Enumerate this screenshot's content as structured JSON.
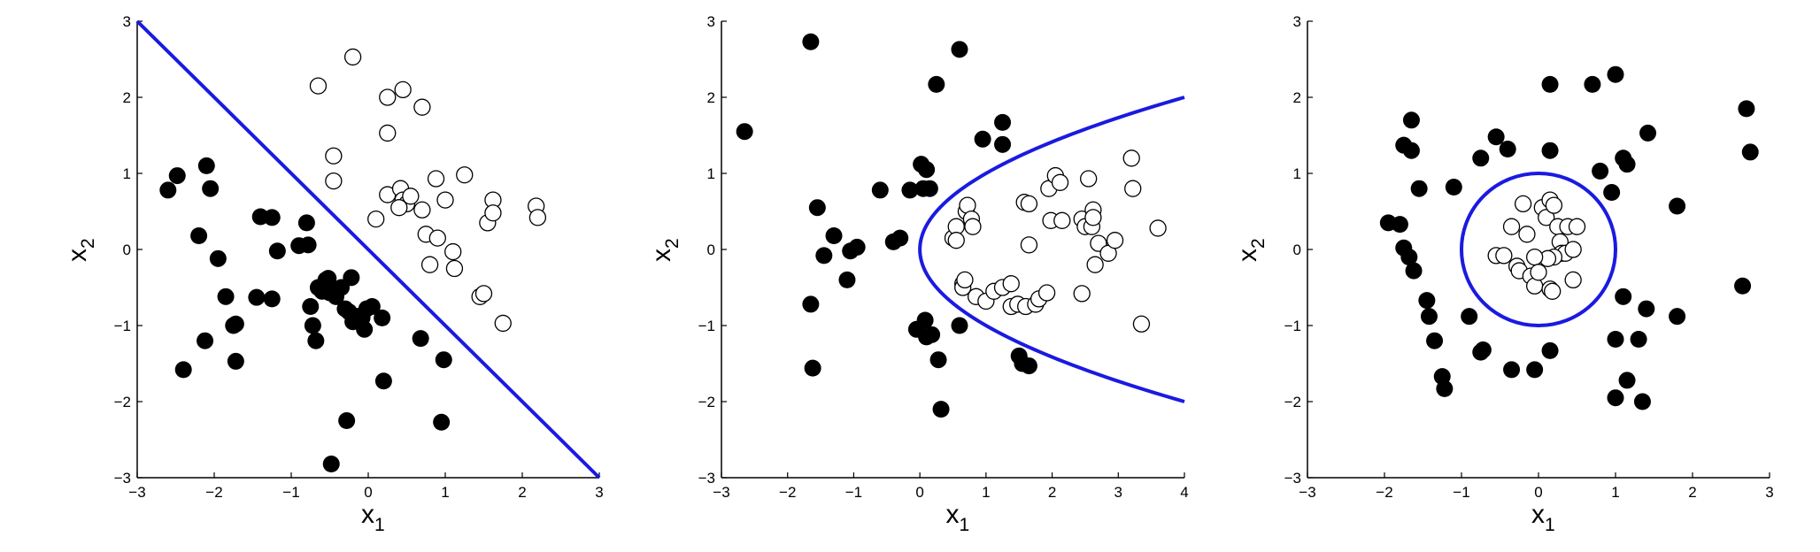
{
  "colors": {
    "boundary": "#1a1ae0",
    "class_a": "#000000",
    "class_b_fill": "#ffffff",
    "class_b_edge": "#000000",
    "axis": "#000000"
  },
  "chart_data": [
    {
      "type": "scatter",
      "xlabel": "x",
      "xlabel_sub": "1",
      "ylabel": "x",
      "ylabel_sub": "2",
      "xlim": [
        -3,
        3
      ],
      "ylim": [
        -3,
        3
      ],
      "xticks": [
        -3,
        -2,
        -1,
        0,
        1,
        2,
        3
      ],
      "yticks": [
        -3,
        -2,
        -1,
        0,
        1,
        2,
        3
      ],
      "grid": false,
      "boundary": {
        "kind": "line",
        "points": [
          [
            -3,
            3
          ],
          [
            3,
            -3
          ]
        ]
      },
      "series": [
        {
          "marker": "filled",
          "points": [
            [
              -2.6,
              0.78
            ],
            [
              -2.48,
              0.97
            ],
            [
              -2.4,
              -1.58
            ],
            [
              -2.2,
              0.18
            ],
            [
              -2.1,
              1.1
            ],
            [
              -2.05,
              0.8
            ],
            [
              -2.12,
              -1.2
            ],
            [
              -1.95,
              -0.12
            ],
            [
              -1.85,
              -0.62
            ],
            [
              -1.75,
              -1.0
            ],
            [
              -1.72,
              -0.98
            ],
            [
              -1.72,
              -1.47
            ],
            [
              -1.45,
              -0.63
            ],
            [
              -1.4,
              0.43
            ],
            [
              -1.25,
              0.42
            ],
            [
              -1.25,
              -0.65
            ],
            [
              -1.18,
              -0.02
            ],
            [
              -0.9,
              0.05
            ],
            [
              -0.8,
              0.35
            ],
            [
              -0.78,
              0.06
            ],
            [
              -0.75,
              -0.75
            ],
            [
              -0.72,
              -1.0
            ],
            [
              -0.68,
              -1.2
            ],
            [
              -0.65,
              -0.5
            ],
            [
              -0.6,
              -0.55
            ],
            [
              -0.55,
              -0.4
            ],
            [
              -0.52,
              -0.38
            ],
            [
              -0.5,
              -0.57
            ],
            [
              -0.42,
              -0.62
            ],
            [
              -0.35,
              -0.5
            ],
            [
              -0.3,
              -0.78
            ],
            [
              -0.25,
              -0.82
            ],
            [
              -0.22,
              -0.37
            ],
            [
              -0.2,
              -0.95
            ],
            [
              -0.15,
              -0.88
            ],
            [
              -0.08,
              -0.9
            ],
            [
              -0.05,
              -1.05
            ],
            [
              -0.02,
              -0.78
            ],
            [
              0.05,
              -0.75
            ],
            [
              0.18,
              -0.9
            ],
            [
              0.2,
              -1.73
            ],
            [
              -0.28,
              -2.25
            ],
            [
              -0.48,
              -2.82
            ],
            [
              0.68,
              -1.17
            ],
            [
              0.98,
              -1.45
            ],
            [
              0.95,
              -2.27
            ]
          ]
        },
        {
          "marker": "open",
          "points": [
            [
              -0.65,
              2.15
            ],
            [
              -0.2,
              2.53
            ],
            [
              -0.45,
              1.23
            ],
            [
              -0.45,
              0.9
            ],
            [
              0.25,
              2.0
            ],
            [
              0.45,
              2.1
            ],
            [
              0.7,
              1.87
            ],
            [
              0.25,
              1.53
            ],
            [
              0.25,
              0.72
            ],
            [
              0.1,
              0.4
            ],
            [
              0.42,
              0.8
            ],
            [
              0.45,
              0.65
            ],
            [
              0.5,
              0.6
            ],
            [
              0.4,
              0.55
            ],
            [
              0.55,
              0.7
            ],
            [
              0.7,
              0.52
            ],
            [
              0.8,
              -0.2
            ],
            [
              0.75,
              0.2
            ],
            [
              0.88,
              0.93
            ],
            [
              0.9,
              0.15
            ],
            [
              1.0,
              0.65
            ],
            [
              1.1,
              -0.03
            ],
            [
              1.12,
              -0.25
            ],
            [
              1.25,
              0.98
            ],
            [
              1.45,
              -0.62
            ],
            [
              1.5,
              -0.58
            ],
            [
              1.55,
              0.35
            ],
            [
              1.62,
              0.65
            ],
            [
              1.62,
              0.48
            ],
            [
              1.75,
              -0.97
            ],
            [
              2.18,
              0.57
            ],
            [
              2.2,
              0.42
            ]
          ]
        }
      ]
    },
    {
      "type": "scatter",
      "xlabel": "x",
      "xlabel_sub": "1",
      "ylabel": "x",
      "ylabel_sub": "2",
      "xlim": [
        -3,
        4
      ],
      "ylim": [
        -3,
        3
      ],
      "xticks": [
        -3,
        -2,
        -1,
        0,
        1,
        2,
        3,
        4
      ],
      "yticks": [
        -3,
        -2,
        -1,
        0,
        1,
        2,
        3
      ],
      "grid": false,
      "boundary": {
        "kind": "parabola",
        "equation": "x1 = x2^2",
        "y_range": [
          -2,
          2
        ]
      },
      "series": [
        {
          "marker": "filled",
          "points": [
            [
              -2.65,
              1.55
            ],
            [
              -1.65,
              2.73
            ],
            [
              -1.55,
              0.55
            ],
            [
              -1.45,
              -0.08
            ],
            [
              -1.3,
              0.18
            ],
            [
              -1.1,
              -0.4
            ],
            [
              -1.65,
              -0.72
            ],
            [
              -1.62,
              -1.56
            ],
            [
              -1.05,
              -0.02
            ],
            [
              -0.95,
              0.03
            ],
            [
              -0.6,
              0.78
            ],
            [
              -0.4,
              0.1
            ],
            [
              -0.3,
              0.15
            ],
            [
              -0.15,
              0.78
            ],
            [
              -0.05,
              -1.05
            ],
            [
              0.02,
              1.12
            ],
            [
              0.1,
              1.05
            ],
            [
              0.05,
              0.8
            ],
            [
              0.15,
              0.8
            ],
            [
              0.08,
              -0.93
            ],
            [
              0.1,
              -1.15
            ],
            [
              0.18,
              -1.12
            ],
            [
              0.25,
              2.17
            ],
            [
              0.28,
              -1.45
            ],
            [
              0.32,
              -2.1
            ],
            [
              0.6,
              2.63
            ],
            [
              0.6,
              -1.0
            ],
            [
              0.95,
              1.45
            ],
            [
              1.25,
              1.67
            ],
            [
              1.25,
              1.38
            ],
            [
              1.5,
              -1.4
            ],
            [
              1.55,
              -1.5
            ],
            [
              1.65,
              -1.53
            ]
          ]
        },
        {
          "marker": "open",
          "points": [
            [
              0.5,
              0.15
            ],
            [
              0.55,
              0.3
            ],
            [
              0.55,
              0.12
            ],
            [
              0.7,
              0.5
            ],
            [
              0.72,
              0.58
            ],
            [
              0.78,
              0.4
            ],
            [
              0.8,
              0.3
            ],
            [
              0.65,
              -0.45
            ],
            [
              0.65,
              -0.5
            ],
            [
              0.68,
              -0.4
            ],
            [
              0.85,
              -0.62
            ],
            [
              1.0,
              -0.68
            ],
            [
              1.12,
              -0.55
            ],
            [
              1.25,
              -0.5
            ],
            [
              1.38,
              -0.45
            ],
            [
              1.38,
              -0.75
            ],
            [
              1.48,
              -0.72
            ],
            [
              1.6,
              -0.75
            ],
            [
              1.75,
              -0.72
            ],
            [
              1.8,
              -0.65
            ],
            [
              1.92,
              -0.57
            ],
            [
              1.58,
              0.62
            ],
            [
              1.65,
              0.6
            ],
            [
              1.65,
              0.06
            ],
            [
              1.95,
              0.8
            ],
            [
              2.05,
              0.97
            ],
            [
              2.12,
              0.88
            ],
            [
              1.98,
              0.38
            ],
            [
              2.15,
              0.38
            ],
            [
              2.45,
              0.4
            ],
            [
              2.5,
              0.3
            ],
            [
              2.55,
              0.93
            ],
            [
              2.62,
              0.52
            ],
            [
              2.6,
              0.3
            ],
            [
              2.62,
              0.42
            ],
            [
              2.7,
              0.08
            ],
            [
              2.65,
              -0.2
            ],
            [
              2.85,
              -0.05
            ],
            [
              2.95,
              0.12
            ],
            [
              2.45,
              -0.58
            ],
            [
              3.2,
              1.2
            ],
            [
              3.22,
              0.8
            ],
            [
              3.35,
              -0.98
            ],
            [
              3.6,
              0.28
            ]
          ]
        }
      ]
    },
    {
      "type": "scatter",
      "xlabel": "x",
      "xlabel_sub": "1",
      "ylabel": "x",
      "ylabel_sub": "2",
      "xlim": [
        -3,
        3
      ],
      "ylim": [
        -3,
        3
      ],
      "xticks": [
        -3,
        -2,
        -1,
        0,
        1,
        2,
        3
      ],
      "yticks": [
        -3,
        -2,
        -1,
        0,
        1,
        2,
        3
      ],
      "grid": false,
      "boundary": {
        "kind": "circle",
        "center": [
          0,
          0
        ],
        "radius": 1
      },
      "series": [
        {
          "marker": "filled",
          "points": [
            [
              -1.65,
              1.7
            ],
            [
              -1.75,
              1.37
            ],
            [
              -1.65,
              1.3
            ],
            [
              -1.75,
              0.02
            ],
            [
              -1.68,
              -0.1
            ],
            [
              -1.62,
              -0.28
            ],
            [
              -1.95,
              0.35
            ],
            [
              -1.8,
              0.33
            ],
            [
              -1.55,
              0.8
            ],
            [
              -1.45,
              -0.67
            ],
            [
              -1.42,
              -0.88
            ],
            [
              -1.35,
              -1.2
            ],
            [
              -1.25,
              -1.67
            ],
            [
              -1.22,
              -1.83
            ],
            [
              -0.9,
              -0.88
            ],
            [
              -0.75,
              -1.35
            ],
            [
              -0.72,
              -1.32
            ],
            [
              -1.1,
              0.82
            ],
            [
              -0.75,
              1.2
            ],
            [
              -0.55,
              1.48
            ],
            [
              -0.4,
              1.32
            ],
            [
              0.15,
              1.3
            ],
            [
              0.15,
              2.17
            ],
            [
              0.7,
              2.17
            ],
            [
              1.0,
              2.3
            ],
            [
              0.8,
              1.03
            ],
            [
              0.95,
              0.75
            ],
            [
              1.1,
              1.2
            ],
            [
              1.15,
              1.12
            ],
            [
              1.42,
              1.53
            ],
            [
              1.1,
              -0.62
            ],
            [
              1.0,
              -1.18
            ],
            [
              1.15,
              -1.72
            ],
            [
              1.0,
              -1.95
            ],
            [
              1.3,
              -1.18
            ],
            [
              1.35,
              -2.0
            ],
            [
              1.4,
              -0.78
            ],
            [
              1.8,
              0.57
            ],
            [
              1.8,
              -0.88
            ],
            [
              2.7,
              1.85
            ],
            [
              2.75,
              1.28
            ],
            [
              2.65,
              -0.48
            ],
            [
              -0.35,
              -1.58
            ],
            [
              -0.05,
              -1.58
            ],
            [
              0.15,
              -1.33
            ]
          ]
        },
        {
          "marker": "open",
          "points": [
            [
              -0.55,
              -0.08
            ],
            [
              -0.45,
              -0.08
            ],
            [
              -0.35,
              0.3
            ],
            [
              -0.2,
              0.6
            ],
            [
              -0.15,
              0.2
            ],
            [
              -0.28,
              -0.22
            ],
            [
              -0.25,
              -0.28
            ],
            [
              -0.1,
              -0.35
            ],
            [
              -0.05,
              -0.48
            ],
            [
              0.05,
              0.55
            ],
            [
              0.1,
              0.42
            ],
            [
              0.15,
              0.65
            ],
            [
              0.2,
              0.58
            ],
            [
              0.25,
              0.3
            ],
            [
              0.28,
              0.1
            ],
            [
              0.3,
              -0.05
            ],
            [
              0.35,
              -0.05
            ],
            [
              0.38,
              0.3
            ],
            [
              0.2,
              -0.1
            ],
            [
              0.12,
              -0.12
            ],
            [
              -0.05,
              -0.1
            ],
            [
              0.0,
              -0.3
            ],
            [
              0.15,
              -0.52
            ],
            [
              0.18,
              -0.55
            ],
            [
              0.45,
              -0.4
            ],
            [
              0.5,
              0.3
            ],
            [
              0.45,
              0.0
            ]
          ]
        }
      ]
    }
  ]
}
